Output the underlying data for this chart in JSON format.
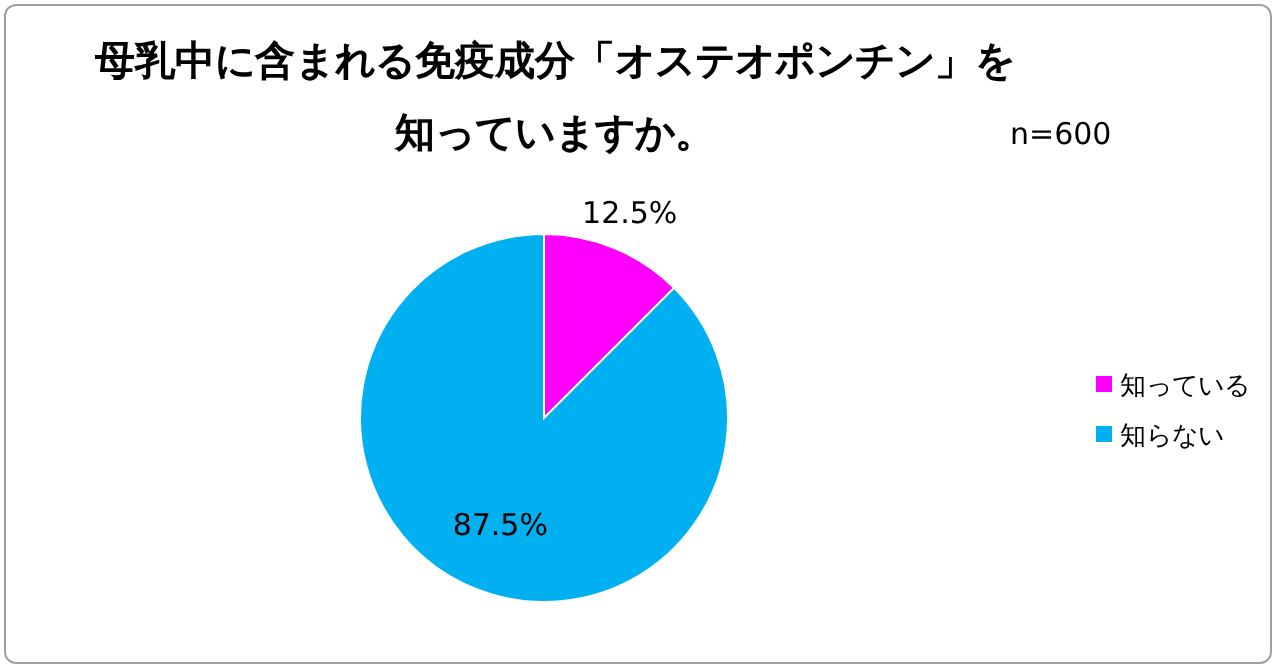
{
  "chart_data": {
    "type": "pie",
    "title": "母乳中に含まれる免疫成分「オステオポンチン」を知っていますか。",
    "annotations": [
      "n=600"
    ],
    "categories": [
      "知っている",
      "知らない"
    ],
    "values": [
      12.5,
      87.5
    ],
    "colors": [
      "#ff00ff",
      "#00b0f0"
    ],
    "value_labels": [
      "12.5%",
      "87.5%"
    ],
    "legend": "right"
  }
}
